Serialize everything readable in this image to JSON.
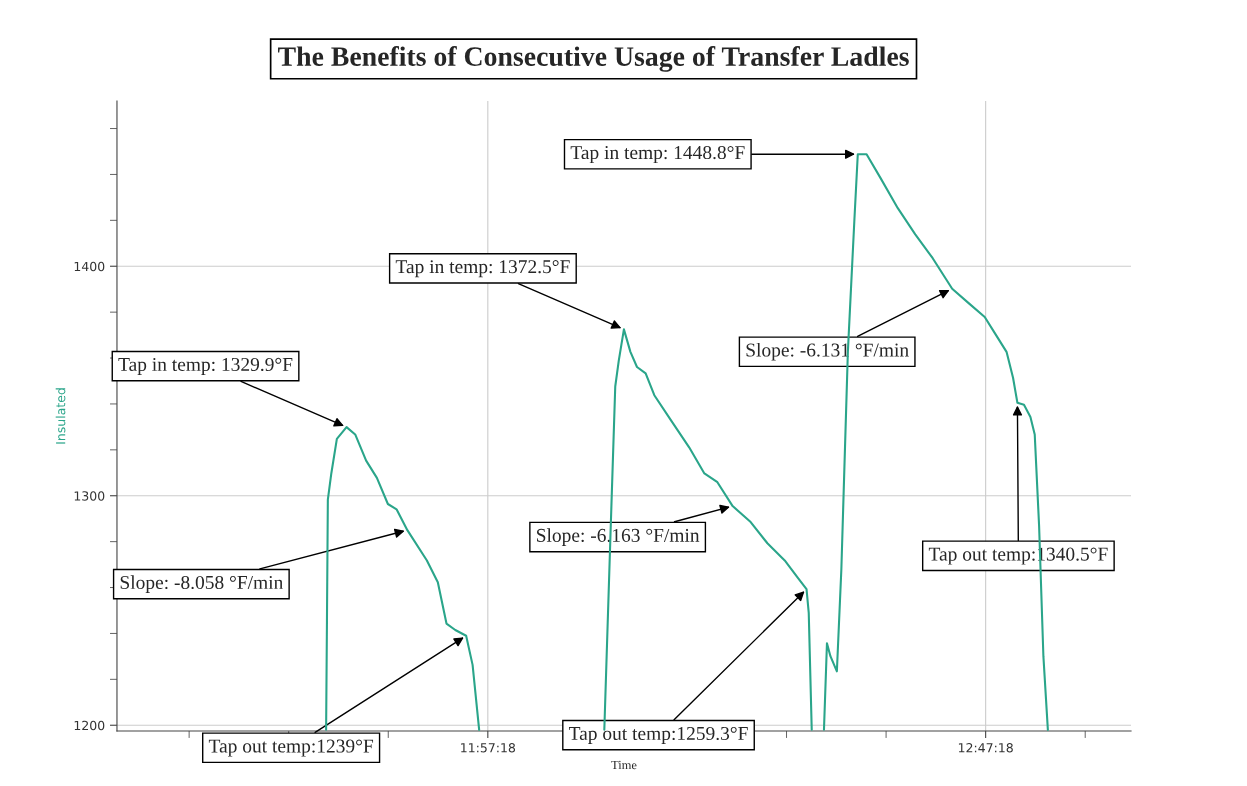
{
  "chart_data": {
    "type": "line",
    "title": "The Benefits of Consecutive Usage of Transfer Ladles",
    "xlabel": "Time",
    "ylabel": "Insulated",
    "xlim": [
      11.3342,
      13.0317
    ],
    "ylim": [
      1197.5,
      1472
    ],
    "xticks": [
      {
        "value": 11.455,
        "label": null
      },
      {
        "value": 11.62167,
        "label": null
      },
      {
        "value": 11.78833,
        "label": null
      },
      {
        "value": 11.955,
        "label": "11:57:18"
      },
      {
        "value": 12.12167,
        "label": null
      },
      {
        "value": 12.28833,
        "label": null
      },
      {
        "value": 12.455,
        "label": null
      },
      {
        "value": 12.62167,
        "label": null
      },
      {
        "value": 12.78833,
        "label": "12:47:18"
      },
      {
        "value": 12.955,
        "label": null
      }
    ],
    "yticks": [
      1200,
      {
        "value": 1220,
        "label": null
      },
      {
        "value": 1240,
        "label": null
      },
      {
        "value": 1260,
        "label": null
      },
      {
        "value": 1280,
        "label": null
      },
      1300,
      {
        "value": 1320,
        "label": null
      },
      {
        "value": 1340,
        "label": null
      },
      {
        "value": 1360,
        "label": null
      },
      {
        "value": 1380,
        "label": null
      },
      1400,
      {
        "value": 1420,
        "label": null
      },
      {
        "value": 1440,
        "label": null
      },
      {
        "value": 1460,
        "label": null
      }
    ],
    "grid": true,
    "legend": false,
    "marker": "none",
    "line_style": "solid",
    "series": [
      {
        "color": "#2aa58a",
        "x": [
          11.6843,
          11.6857,
          11.6872,
          11.693,
          11.7023,
          11.7185,
          11.733,
          11.7513,
          11.7693,
          11.7877,
          11.8022,
          11.8203,
          11.853,
          11.8713,
          11.8858,
          11.9005,
          11.9187,
          11.9295,
          11.9405,
          11.99,
          12.15,
          12.1608,
          12.1683,
          12.1742,
          12.1828,
          12.1937,
          12.2047,
          12.2192,
          12.2337,
          12.2628,
          12.292,
          12.3175,
          12.3393,
          12.3648,
          12.394,
          12.423,
          12.452,
          12.474,
          12.4885,
          12.4922,
          12.4972,
          12.507,
          12.5177,
          12.5227,
          12.5285,
          12.5393,
          12.5468,
          12.5577,
          12.5685,
          12.5743,
          12.589,
          12.6122,
          12.6413,
          12.6705,
          12.6997,
          12.7323,
          12.7613,
          12.7868,
          12.805,
          12.8233,
          12.8342,
          12.8415,
          12.8525,
          12.8633,
          12.8705,
          12.8778,
          12.885,
          12.8925
        ],
        "values": [
          1198,
          1245.2,
          1298.3,
          1309.7,
          1324.8,
          1329.9,
          1326.7,
          1315.3,
          1307.8,
          1296.4,
          1294.1,
          1285.0,
          1271.8,
          1262.3,
          1244.3,
          1241.5,
          1239,
          1226.3,
          1198,
          null,
          1198,
          1286.9,
          1347.6,
          1358.9,
          1372.5,
          1362.7,
          1356.1,
          1353.3,
          1343.8,
          1332.4,
          1321.1,
          1309.7,
          1305.9,
          1295.5,
          1288.8,
          1279.3,
          1271.8,
          1264.2,
          1259.3,
          1249.0,
          1198,
          null,
          1198,
          1235.7,
          1230.1,
          1223.5,
          1268.0,
          1362.7,
          1419.6,
          1448.8,
          1448.8,
          1438.5,
          1425.3,
          1413.9,
          1403.5,
          1390.2,
          1383.6,
          1377.9,
          1370.3,
          1362.7,
          1351.4,
          1340.5,
          1339.6,
          1334.3,
          1326.7,
          1286.9,
          1230.1,
          1198
        ]
      }
    ],
    "annotations": [
      {
        "text": "Tap in temp: 1329.9°F",
        "x": 11.7185,
        "y": 1329.9
      },
      {
        "text": "Slope: -8.058 °F/min",
        "x": 11.8203,
        "y": 1285.0
      },
      {
        "text": "Tap out temp:1239°F",
        "x": 11.9187,
        "y": 1239
      },
      {
        "text": "Tap in temp: 1372.5°F",
        "x": 12.1828,
        "y": 1372.5
      },
      {
        "text": "Slope: -6.163 °F/min",
        "x": 12.3648,
        "y": 1295.5
      },
      {
        "text": "Tap out temp:1259.3°F",
        "x": 12.4885,
        "y": 1259.3
      },
      {
        "text": "Tap in temp: 1448.8°F",
        "x": 12.5743,
        "y": 1448.8
      },
      {
        "text": "Slope: -6.131 °F/min",
        "x": 12.7323,
        "y": 1390.2
      },
      {
        "text": "Tap out temp:1340.5°F",
        "x": 12.8415,
        "y": 1340.5
      }
    ]
  }
}
